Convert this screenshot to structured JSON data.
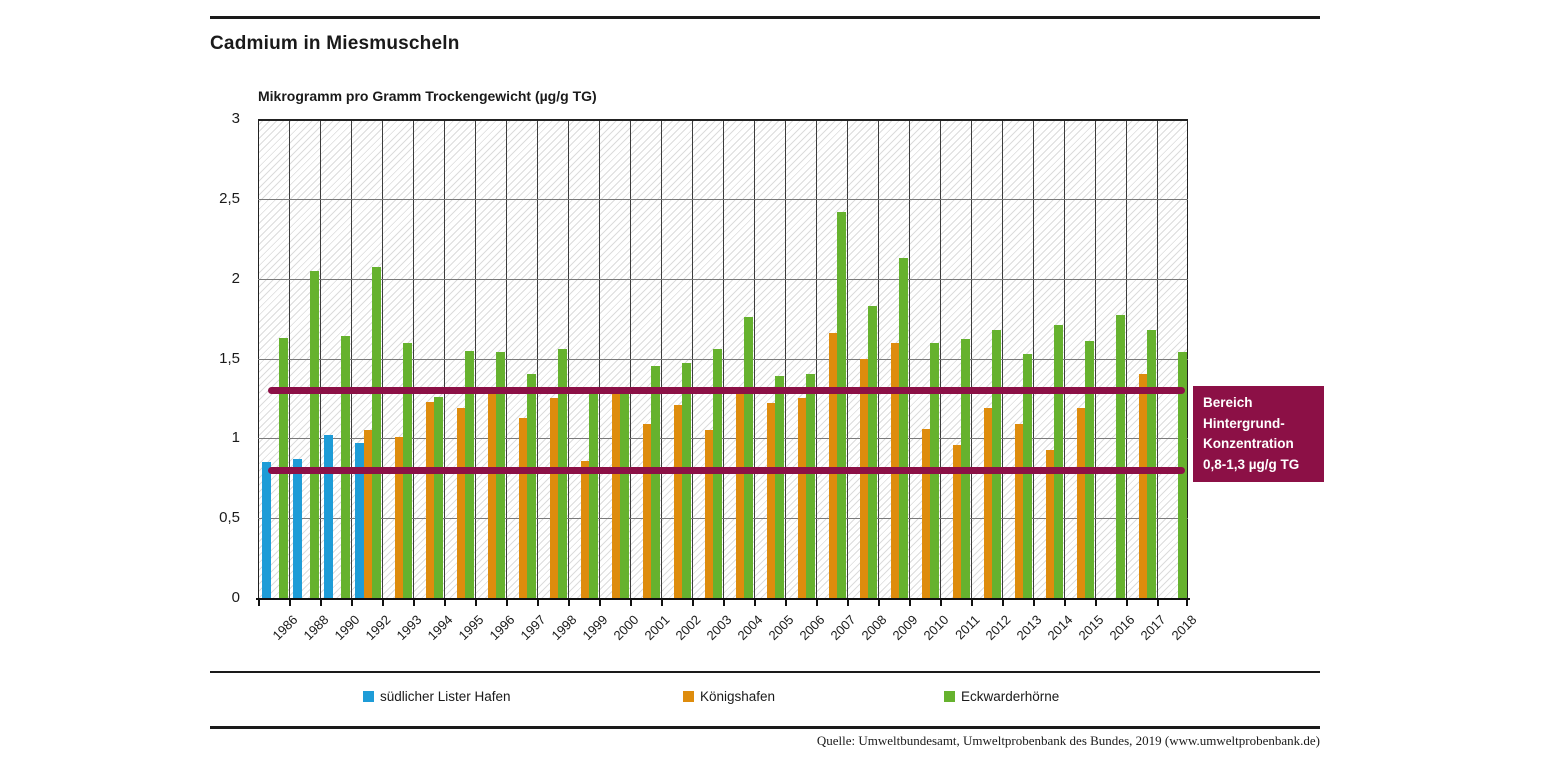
{
  "page": {
    "title": "Cadmium in Miesmuscheln",
    "source": "Quelle: Umweltbundesamt, Umweltprobenbank des Bundes, 2019 (www.umweltprobenbank.de)"
  },
  "annotation_box": {
    "lines": [
      "Bereich",
      "Hintergrund-",
      "Konzentration",
      "0,8-1,3 µg/g TG"
    ],
    "background": "#8C1046",
    "text_color": "#FFFFFF"
  },
  "chart_data": {
    "type": "bar",
    "title": "Cadmium in Miesmuscheln",
    "axis_title": "Mikrogramm pro Gramm Trockengewicht (µg/g TG)",
    "categories": [
      "1986",
      "1988",
      "1990",
      "1992",
      "1993",
      "1994",
      "1995",
      "1996",
      "1997",
      "1998",
      "1999",
      "2000",
      "2001",
      "2002",
      "2003",
      "2004",
      "2005",
      "2006",
      "2007",
      "2008",
      "2009",
      "2010",
      "2011",
      "2012",
      "2013",
      "2014",
      "2015",
      "2016",
      "2017",
      "2018"
    ],
    "series": [
      {
        "name": "südlicher Lister Hafen",
        "color": "#1E9CD7",
        "values": [
          0.85,
          0.87,
          1.02,
          0.97,
          null,
          null,
          null,
          null,
          null,
          null,
          null,
          null,
          null,
          null,
          null,
          null,
          null,
          null,
          null,
          null,
          null,
          null,
          null,
          null,
          null,
          null,
          null,
          null,
          null,
          null
        ]
      },
      {
        "name": "Königshafen",
        "color": "#DE8C0D",
        "values": [
          null,
          null,
          null,
          1.05,
          1.01,
          1.23,
          1.19,
          1.29,
          1.13,
          1.25,
          0.86,
          1.28,
          1.09,
          1.21,
          1.05,
          1.31,
          1.22,
          1.25,
          1.66,
          1.5,
          1.6,
          1.06,
          0.96,
          1.19,
          1.09,
          0.93,
          1.19,
          null,
          1.4,
          null
        ]
      },
      {
        "name": "Eckwarderhörne",
        "color": "#66B22E",
        "values": [
          1.63,
          2.05,
          1.64,
          2.07,
          1.6,
          1.26,
          1.55,
          1.54,
          1.4,
          1.56,
          1.29,
          1.28,
          1.45,
          1.47,
          1.56,
          1.76,
          1.39,
          1.4,
          2.42,
          1.83,
          2.13,
          1.6,
          1.62,
          1.68,
          1.53,
          1.71,
          1.61,
          1.77,
          1.68,
          1.54
        ]
      }
    ],
    "y_axis": {
      "min": 0,
      "max": 3,
      "step": 0.5,
      "tick_labels": [
        "0",
        "0,5",
        "1",
        "1,5",
        "2",
        "2,5",
        "3"
      ]
    },
    "reference_lines": {
      "values": [
        1.3,
        0.8
      ],
      "color": "#8C1046",
      "label": "Bereich Hintergrund-Konzentration 0,8-1,3 µg/g TG"
    },
    "grid": true,
    "legend_position": "bottom",
    "background_pattern": "diagonal-hatch"
  }
}
